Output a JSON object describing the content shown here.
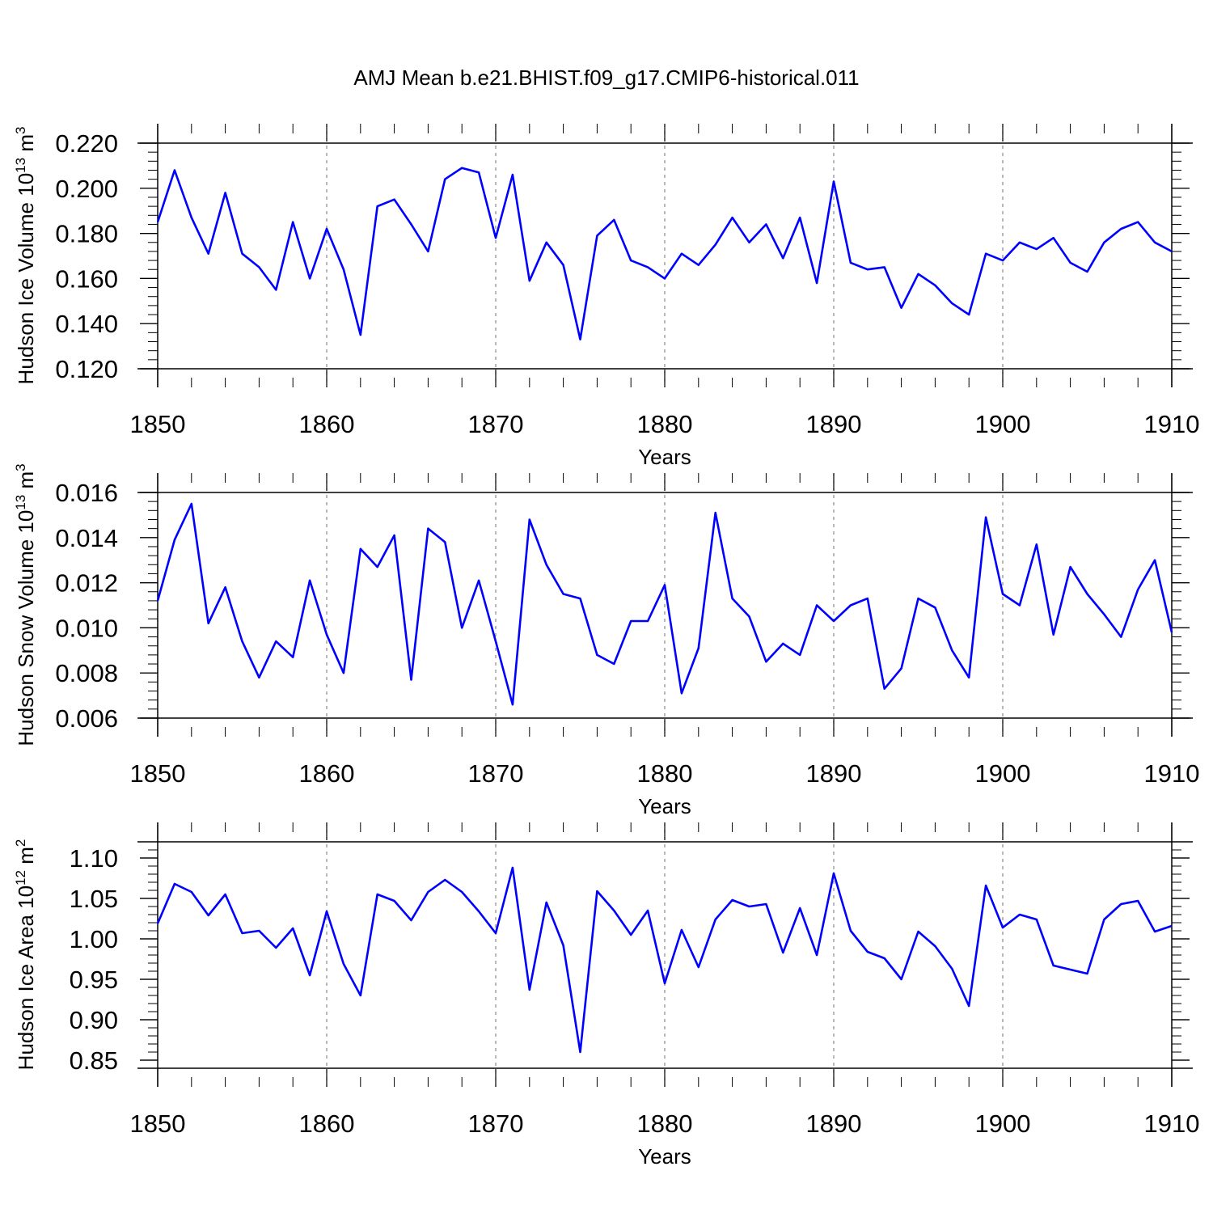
{
  "title": "AMJ Mean b.e21.BHIST.f09_g17.CMIP6-historical.011",
  "colors": {
    "line": "#0000ff",
    "grid": "#888888",
    "axis": "#000000"
  },
  "chart_data": [
    {
      "type": "line",
      "xlabel": "Years",
      "ylabel": {
        "main": "Hudson Ice Volume 10",
        "exp": "13",
        "unit": " m",
        "unit_exp": "3"
      },
      "xlim": [
        1850,
        1910
      ],
      "ylim": [
        0.12,
        0.22
      ],
      "yticks": [
        0.12,
        0.14,
        0.16,
        0.18,
        0.2,
        0.22
      ],
      "ytick_labels": [
        "0.120",
        "0.140",
        "0.160",
        "0.180",
        "0.200",
        "0.220"
      ],
      "xticks": [
        1850,
        1860,
        1870,
        1880,
        1890,
        1900,
        1910
      ],
      "xtick_labels": [
        "1850",
        "1860",
        "1870",
        "1880",
        "1890",
        "1900",
        "1910"
      ],
      "grid_x": [
        1860,
        1870,
        1880,
        1890,
        1900
      ],
      "x_start": 1850,
      "values": [
        0.185,
        0.208,
        0.187,
        0.171,
        0.198,
        0.171,
        0.165,
        0.155,
        0.185,
        0.16,
        0.182,
        0.164,
        0.135,
        0.192,
        0.195,
        0.184,
        0.172,
        0.204,
        0.209,
        0.207,
        0.178,
        0.206,
        0.159,
        0.176,
        0.166,
        0.133,
        0.179,
        0.186,
        0.168,
        0.165,
        0.16,
        0.171,
        0.166,
        0.175,
        0.187,
        0.176,
        0.184,
        0.169,
        0.187,
        0.158,
        0.203,
        0.167,
        0.164,
        0.165,
        0.147,
        0.162,
        0.157,
        0.149,
        0.144,
        0.171,
        0.168,
        0.176,
        0.173,
        0.178,
        0.167,
        0.163,
        0.176,
        0.182,
        0.185,
        0.176,
        0.172
      ]
    },
    {
      "type": "line",
      "xlabel": "Years",
      "ylabel": {
        "main": "Hudson Snow Volume 10",
        "exp": "13",
        "unit": " m",
        "unit_exp": "3"
      },
      "xlim": [
        1850,
        1910
      ],
      "ylim": [
        0.006,
        0.016
      ],
      "yticks": [
        0.006,
        0.008,
        0.01,
        0.012,
        0.014,
        0.016
      ],
      "ytick_labels": [
        "0.006",
        "0.008",
        "0.010",
        "0.012",
        "0.014",
        "0.016"
      ],
      "xticks": [
        1850,
        1860,
        1870,
        1880,
        1890,
        1900,
        1910
      ],
      "xtick_labels": [
        "1850",
        "1860",
        "1870",
        "1880",
        "1890",
        "1900",
        "1910"
      ],
      "grid_x": [
        1860,
        1870,
        1880,
        1890,
        1900
      ],
      "x_start": 1850,
      "values": [
        0.0112,
        0.0139,
        0.0155,
        0.0102,
        0.0118,
        0.0094,
        0.0078,
        0.0094,
        0.0087,
        0.0121,
        0.0097,
        0.008,
        0.0135,
        0.0127,
        0.0141,
        0.0077,
        0.0144,
        0.0138,
        0.01,
        0.0121,
        0.0094,
        0.0066,
        0.0148,
        0.0128,
        0.0115,
        0.0113,
        0.0088,
        0.0084,
        0.0103,
        0.0103,
        0.0119,
        0.0071,
        0.0091,
        0.0151,
        0.0113,
        0.0105,
        0.0085,
        0.0093,
        0.0088,
        0.011,
        0.0103,
        0.011,
        0.0113,
        0.0073,
        0.0082,
        0.0113,
        0.0109,
        0.009,
        0.0078,
        0.0149,
        0.0115,
        0.011,
        0.0137,
        0.0097,
        0.0127,
        0.0115,
        0.0106,
        0.0096,
        0.0117,
        0.013,
        0.0098
      ]
    },
    {
      "type": "line",
      "xlabel": "Years",
      "ylabel": {
        "main": "Hudson Ice Area 10",
        "exp": "12",
        "unit": " m",
        "unit_exp": "2"
      },
      "xlim": [
        1850,
        1910
      ],
      "ylim": [
        0.84,
        1.12
      ],
      "yticks": [
        0.85,
        0.9,
        0.95,
        1.0,
        1.05,
        1.1
      ],
      "ytick_labels": [
        "0.85",
        "0.90",
        "0.95",
        "1.00",
        "1.05",
        "1.10"
      ],
      "xticks": [
        1850,
        1860,
        1870,
        1880,
        1890,
        1900,
        1910
      ],
      "xtick_labels": [
        "1850",
        "1860",
        "1870",
        "1880",
        "1890",
        "1900",
        "1910"
      ],
      "grid_x": [
        1860,
        1870,
        1880,
        1890,
        1900
      ],
      "x_start": 1850,
      "values": [
        1.019,
        1.068,
        1.058,
        1.029,
        1.055,
        1.007,
        1.01,
        0.989,
        1.013,
        0.955,
        1.034,
        0.969,
        0.93,
        1.055,
        1.047,
        1.023,
        1.058,
        1.073,
        1.058,
        1.034,
        1.007,
        1.088,
        0.937,
        1.045,
        0.992,
        0.86,
        1.059,
        1.035,
        1.005,
        1.035,
        0.945,
        1.011,
        0.965,
        1.024,
        1.048,
        1.04,
        1.043,
        0.983,
        1.038,
        0.98,
        1.081,
        1.01,
        0.984,
        0.976,
        0.95,
        1.009,
        0.991,
        0.963,
        0.917,
        1.066,
        1.014,
        1.03,
        1.024,
        0.967,
        0.962,
        0.957,
        1.024,
        1.043,
        1.047,
        1.009,
        1.016
      ]
    }
  ]
}
